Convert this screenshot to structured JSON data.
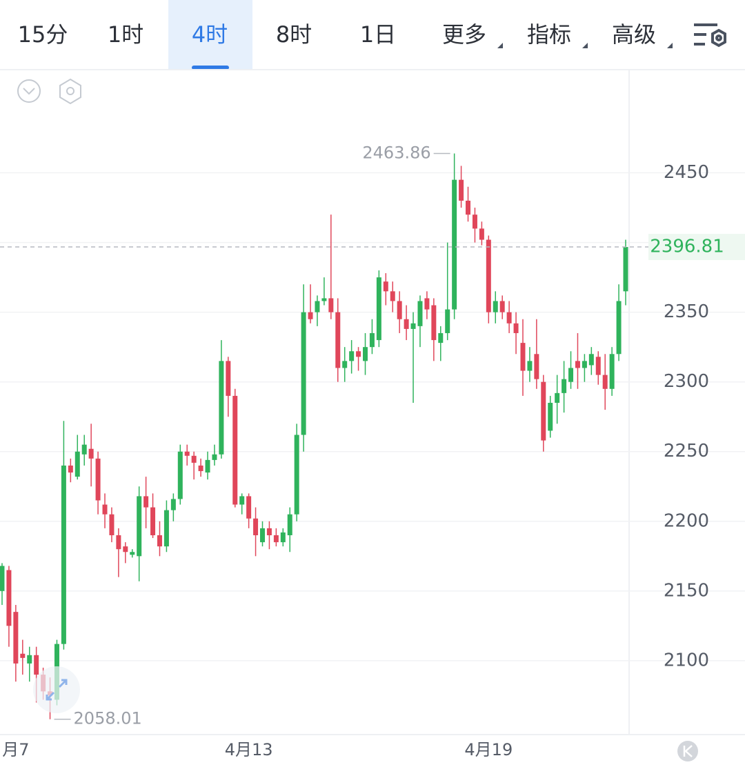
{
  "tabs": [
    "15分",
    "1时",
    "4时",
    "8时",
    "1日",
    "更多",
    "指标",
    "高级"
  ],
  "chart_data": {
    "type": "candlestick",
    "categories": [
      null,
      null,
      "月7",
      null,
      null,
      null,
      null,
      null,
      null,
      null,
      null,
      null,
      null,
      null,
      null,
      null,
      null,
      null,
      null,
      null,
      null,
      null,
      null,
      null,
      null,
      null,
      null,
      null,
      null,
      null,
      null,
      null,
      null,
      null,
      null,
      null,
      "4月13",
      null,
      null,
      null,
      null,
      null,
      null,
      null,
      null,
      null,
      null,
      null,
      null,
      null,
      null,
      null,
      null,
      null,
      null,
      null,
      null,
      null,
      null,
      null,
      null,
      null,
      null,
      null,
      null,
      null,
      null,
      null,
      null,
      null,
      null,
      "4月19",
      null,
      null,
      null,
      null,
      null,
      null,
      null,
      null,
      null,
      null,
      null,
      null,
      null,
      null,
      null,
      null,
      null,
      null,
      null,
      null
    ],
    "ohlc": [
      [
        2150,
        2170,
        2140,
        2168
      ],
      [
        2165,
        2168,
        2110,
        2125
      ],
      [
        2135,
        2140,
        2085,
        2098
      ],
      [
        2105,
        2115,
        2090,
        2102
      ],
      [
        2098,
        2110,
        2085,
        2104
      ],
      [
        2104,
        2110,
        2070,
        2090
      ],
      [
        2090,
        2095,
        2072,
        2078
      ],
      [
        2078,
        2088,
        2058.01,
        2075
      ],
      [
        2072,
        2115,
        2068,
        2112
      ],
      [
        2112,
        2272,
        2108,
        2240
      ],
      [
        2240,
        2245,
        2228,
        2235
      ],
      [
        2232,
        2262,
        2230,
        2250
      ],
      [
        2248,
        2262,
        2240,
        2255
      ],
      [
        2252,
        2270,
        2225,
        2245
      ],
      [
        2245,
        2250,
        2205,
        2215
      ],
      [
        2212,
        2220,
        2195,
        2205
      ],
      [
        2205,
        2210,
        2185,
        2190
      ],
      [
        2190,
        2195,
        2160,
        2180
      ],
      [
        2182,
        2185,
        2170,
        2178
      ],
      [
        2176,
        2180,
        2174,
        2178
      ],
      [
        2175,
        2225,
        2157,
        2218
      ],
      [
        2218,
        2232,
        2195,
        2210
      ],
      [
        2210,
        2220,
        2188,
        2190
      ],
      [
        2190,
        2200,
        2175,
        2182
      ],
      [
        2182,
        2215,
        2178,
        2208
      ],
      [
        2208,
        2220,
        2200,
        2216
      ],
      [
        2216,
        2255,
        2212,
        2250
      ],
      [
        2250,
        2255,
        2240,
        2247
      ],
      [
        2247,
        2250,
        2230,
        2242
      ],
      [
        2240,
        2245,
        2232,
        2236
      ],
      [
        2235,
        2250,
        2230,
        2244
      ],
      [
        2244,
        2255,
        2240,
        2248
      ],
      [
        2248,
        2330,
        2245,
        2315
      ],
      [
        2315,
        2318,
        2275,
        2290
      ],
      [
        2290,
        2295,
        2210,
        2212
      ],
      [
        2212,
        2220,
        2205,
        2218
      ],
      [
        2218,
        2220,
        2195,
        2202
      ],
      [
        2202,
        2210,
        2175,
        2190
      ],
      [
        2185,
        2200,
        2182,
        2195
      ],
      [
        2195,
        2200,
        2180,
        2190
      ],
      [
        2190,
        2195,
        2182,
        2185
      ],
      [
        2185,
        2195,
        2182,
        2192
      ],
      [
        2190,
        2210,
        2178,
        2205
      ],
      [
        2205,
        2270,
        2200,
        2262
      ],
      [
        2262,
        2370,
        2250,
        2350
      ],
      [
        2350,
        2370,
        2342,
        2345
      ],
      [
        2350,
        2362,
        2340,
        2358
      ],
      [
        2358,
        2375,
        2355,
        2360
      ],
      [
        2360,
        2420,
        2345,
        2350
      ],
      [
        2350,
        2360,
        2300,
        2310
      ],
      [
        2310,
        2325,
        2300,
        2315
      ],
      [
        2315,
        2330,
        2306,
        2322
      ],
      [
        2322,
        2325,
        2308,
        2318
      ],
      [
        2315,
        2335,
        2305,
        2325
      ],
      [
        2325,
        2345,
        2320,
        2335
      ],
      [
        2330,
        2380,
        2325,
        2375
      ],
      [
        2372,
        2378,
        2355,
        2365
      ],
      [
        2365,
        2372,
        2350,
        2358
      ],
      [
        2358,
        2365,
        2335,
        2345
      ],
      [
        2345,
        2355,
        2330,
        2338
      ],
      [
        2338,
        2350,
        2285,
        2342
      ],
      [
        2340,
        2362,
        2325,
        2358
      ],
      [
        2360,
        2365,
        2345,
        2352
      ],
      [
        2355,
        2360,
        2315,
        2330
      ],
      [
        2328,
        2340,
        2315,
        2335
      ],
      [
        2335,
        2400,
        2330,
        2352
      ],
      [
        2352,
        2463.86,
        2345,
        2445
      ],
      [
        2445,
        2455,
        2425,
        2430
      ],
      [
        2430,
        2440,
        2415,
        2420
      ],
      [
        2420,
        2425,
        2400,
        2410
      ],
      [
        2410,
        2415,
        2398,
        2402
      ],
      [
        2402,
        2405,
        2342,
        2350
      ],
      [
        2350,
        2365,
        2342,
        2358
      ],
      [
        2358,
        2362,
        2345,
        2350
      ],
      [
        2350,
        2358,
        2335,
        2342
      ],
      [
        2342,
        2350,
        2320,
        2335
      ],
      [
        2328,
        2345,
        2290,
        2308
      ],
      [
        2308,
        2325,
        2300,
        2315
      ],
      [
        2320,
        2345,
        2295,
        2302
      ],
      [
        2300,
        2305,
        2250,
        2258
      ],
      [
        2265,
        2290,
        2260,
        2285
      ],
      [
        2285,
        2305,
        2270,
        2292
      ],
      [
        2292,
        2315,
        2278,
        2302
      ],
      [
        2300,
        2322,
        2295,
        2310
      ],
      [
        2315,
        2335,
        2295,
        2310
      ],
      [
        2310,
        2320,
        2300,
        2315
      ],
      [
        2312,
        2325,
        2305,
        2320
      ],
      [
        2318,
        2322,
        2298,
        2305
      ],
      [
        2305,
        2320,
        2280,
        2295
      ],
      [
        2295,
        2325,
        2290,
        2320
      ],
      [
        2320,
        2370,
        2315,
        2358
      ],
      [
        2365,
        2402,
        2355,
        2396.81
      ]
    ],
    "ylim": [
      2047,
      2524
    ],
    "yticks": [
      2100,
      2150,
      2200,
      2250,
      2300,
      2350,
      2400,
      2450
    ],
    "up_color": "#2fb35c",
    "down_color": "#e0465a",
    "grid": true
  }
}
